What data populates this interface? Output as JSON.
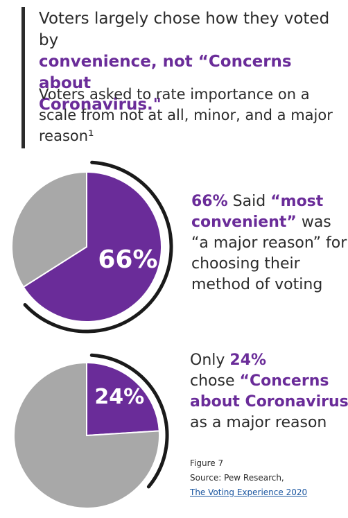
{
  "headline": {
    "line1": "Voters largely chose how they voted by",
    "line2": "convenience, not “Concerns about",
    "line3": "Coronavirus.\""
  },
  "subhead": {
    "line1": "Voters asked to rate importance on a",
    "line2": "scale from not at all, minor, and a major",
    "line3": "reason¹"
  },
  "caption1": {
    "l1_pct": "66%",
    "l1_a": " Said ",
    "l1_b": "“most",
    "l2_a": "convenient”",
    "l2_b": " was",
    "l3": "“a major reason” for",
    "l4": "choosing their",
    "l5": "method of voting"
  },
  "caption2": {
    "l1_a": "Only ",
    "l1_b": "24%",
    "l2_a": "chose ",
    "l2_b": "“Concerns",
    "l3": "about Coronavirus”",
    "l4": "as a major reason"
  },
  "footer": {
    "figure": "Figure 7",
    "source": "Source: Pew Research,",
    "link": "The Voting Experience 2020"
  },
  "colors": {
    "purple": "#6a2c99",
    "gray": "#a8a8a8",
    "ring": "#1a1a1a"
  },
  "chart_data": [
    {
      "type": "pie",
      "labels": [
        "Most convenient: a major reason",
        "Other"
      ],
      "values": [
        66,
        34
      ],
      "label_text": "66%",
      "colors": [
        "#6a2c99",
        "#a8a8a8"
      ]
    },
    {
      "type": "pie",
      "labels": [
        "Concerns about Coronavirus: a major reason",
        "Other"
      ],
      "values": [
        24,
        76
      ],
      "label_text": "24%",
      "colors": [
        "#6a2c99",
        "#a8a8a8"
      ]
    }
  ]
}
